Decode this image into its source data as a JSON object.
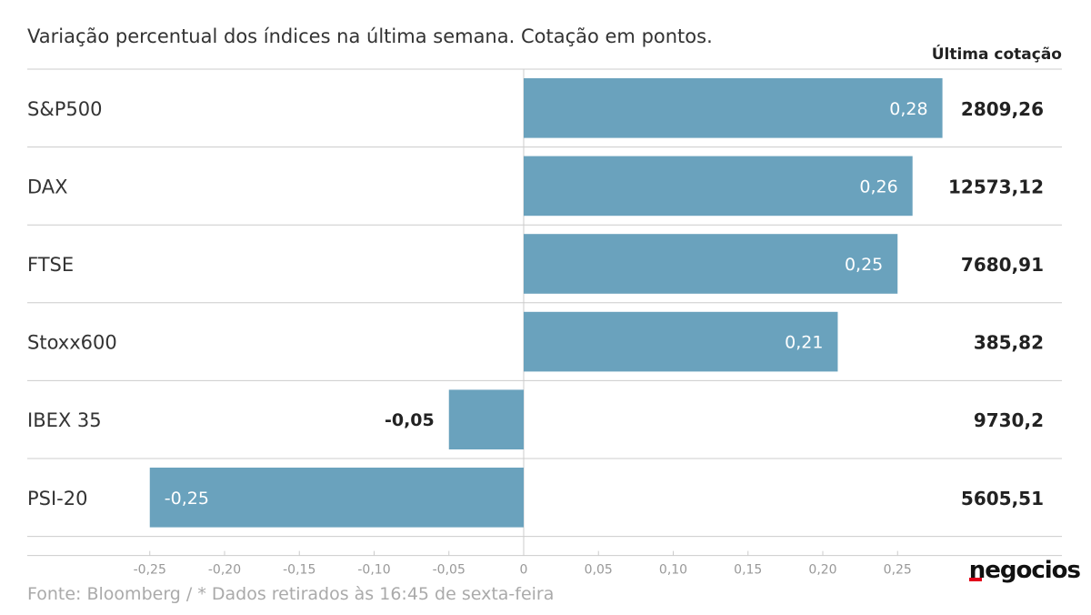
{
  "header": {
    "subtitle": "Variação percentual dos índices na última semana. Cotação em pontos.",
    "last_quote_label": "Última cotação"
  },
  "footer": {
    "source": "Fonte: Bloomberg / * Dados retirados às 16:45 de sexta-feira",
    "brand": "negocios"
  },
  "colors": {
    "bar": "#6aa2bd",
    "grid": "#cccccc",
    "label_inside": "#ffffff",
    "label_outside": "#222222",
    "brand_accent": "#e2001a"
  },
  "chart_data": {
    "type": "bar",
    "orientation": "horizontal",
    "categories": [
      "S&P500",
      "DAX",
      "FTSE",
      "Stoxx600",
      "IBEX 35",
      "PSI-20"
    ],
    "values": [
      0.28,
      0.26,
      0.25,
      0.21,
      -0.05,
      -0.25
    ],
    "value_labels": [
      "0,28",
      "0,26",
      "0,25",
      "0,21",
      "-0,05",
      "-0,25"
    ],
    "last_quotes": [
      "2809,26",
      "12573,12",
      "7680,91",
      "385,82",
      "9730,2",
      "5605,51"
    ],
    "xlim": [
      -0.25,
      0.28
    ],
    "xticks": [
      -0.25,
      -0.2,
      -0.15,
      -0.1,
      -0.05,
      0,
      0.05,
      0.1,
      0.15,
      0.2,
      0.25
    ],
    "xtick_labels": [
      "-0,25",
      "-0,20",
      "-0,15",
      "-0,10",
      "-0,05",
      "0",
      "0,05",
      "0,10",
      "0,15",
      "0,20",
      "0,25"
    ],
    "grid": false
  }
}
